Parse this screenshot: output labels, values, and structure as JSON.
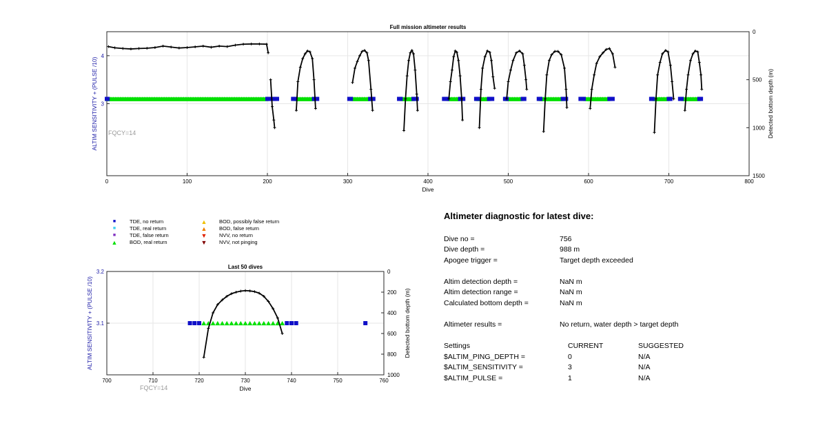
{
  "chart_data": [
    {
      "type": "scatter",
      "title": "Full mission altimeter results",
      "xlabel": "Dive",
      "ylabel": "ALTIM SENSITIVITY + (PULSE /10)",
      "y2label": "Detected bottom depth (m)",
      "annotation": "FQCY=14",
      "xlim": [
        0,
        800
      ],
      "ylim": [
        1.5,
        4.5
      ],
      "y2lim": [
        1500,
        0
      ],
      "xticks": [
        0,
        100,
        200,
        300,
        400,
        500,
        600,
        700,
        800
      ],
      "yticks": [
        3,
        4
      ],
      "y2ticks": [
        0,
        500,
        1000,
        1500
      ],
      "grid": true,
      "series": [
        {
          "name": "BOD, real return",
          "color": "#00e000",
          "marker": "triangle",
          "y": 3.1,
          "ranges": [
            [
              1,
              199
            ],
            [
              236,
              258
            ],
            [
              306,
              328
            ],
            [
              368,
              382
            ],
            [
              426,
              440
            ],
            [
              462,
              476
            ],
            [
              498,
              517
            ],
            [
              540,
              568
            ],
            [
              596,
              626
            ],
            [
              682,
              700
            ],
            [
              718,
              738
            ]
          ]
        },
        {
          "name": "TDE, no return",
          "color": "#1010c8",
          "marker": "square",
          "y": 3.1,
          "x": [
            0,
            1,
            200,
            202,
            204,
            206,
            208,
            210,
            212,
            232,
            234,
            258,
            260,
            262,
            302,
            304,
            328,
            330,
            332,
            364,
            366,
            382,
            384,
            386,
            420,
            422,
            424,
            440,
            442,
            444,
            460,
            462,
            476,
            478,
            480,
            496,
            498,
            518,
            520,
            538,
            540,
            568,
            570,
            572,
            590,
            592,
            594,
            626,
            628,
            630,
            678,
            680,
            700,
            702,
            714,
            716,
            738,
            740
          ]
        },
        {
          "name": "Detected bottom depth",
          "color": "#000000",
          "marker": "plus",
          "axis": "y2",
          "segments": [
            [
              [
                2,
                155
              ],
              [
                10,
                168
              ],
              [
                20,
                175
              ],
              [
                30,
                180
              ],
              [
                40,
                175
              ],
              [
                50,
                172
              ],
              [
                60,
                165
              ],
              [
                70,
                150
              ],
              [
                80,
                160
              ],
              [
                90,
                170
              ],
              [
                100,
                165
              ],
              [
                110,
                158
              ],
              [
                120,
                150
              ],
              [
                130,
                162
              ],
              [
                140,
                150
              ],
              [
                150,
                155
              ],
              [
                160,
                140
              ],
              [
                170,
                130
              ],
              [
                180,
                128
              ],
              [
                190,
                128
              ],
              [
                199,
                130
              ],
              [
                201,
                220
              ]
            ],
            [
              [
                204,
                500
              ],
              [
                206,
                780
              ],
              [
                208,
                920
              ],
              [
                209,
                1000
              ]
            ],
            [
              [
                236,
                820
              ],
              [
                238,
                520
              ],
              [
                241,
                370
              ],
              [
                244,
                280
              ],
              [
                247,
                230
              ],
              [
                250,
                200
              ],
              [
                253,
                210
              ],
              [
                256,
                280
              ],
              [
                258,
                500
              ],
              [
                260,
                800
              ]
            ],
            [
              [
                306,
                530
              ],
              [
                309,
                380
              ],
              [
                312,
                310
              ],
              [
                315,
                250
              ],
              [
                318,
                205
              ],
              [
                321,
                195
              ],
              [
                324,
                220
              ],
              [
                326,
                300
              ],
              [
                329,
                600
              ],
              [
                331,
                820
              ]
            ],
            [
              [
                370,
                1030
              ],
              [
                372,
                700
              ],
              [
                374,
                460
              ],
              [
                376,
                300
              ],
              [
                378,
                220
              ],
              [
                380,
                195
              ],
              [
                382,
                230
              ],
              [
                384,
                400
              ],
              [
                386,
                650
              ],
              [
                387,
                820
              ]
            ],
            [
              [
                426,
                700
              ],
              [
                428,
                520
              ],
              [
                430,
                400
              ],
              [
                432,
                260
              ],
              [
                434,
                200
              ],
              [
                436,
                215
              ],
              [
                438,
                300
              ],
              [
                440,
                460
              ],
              [
                442,
                700
              ],
              [
                443,
                920
              ]
            ],
            [
              [
                464,
                1000
              ],
              [
                466,
                600
              ],
              [
                468,
                380
              ],
              [
                471,
                260
              ],
              [
                474,
                200
              ],
              [
                477,
                215
              ],
              [
                479,
                300
              ],
              [
                481,
                470
              ],
              [
                483,
                590
              ]
            ],
            [
              [
                498,
                700
              ],
              [
                500,
                520
              ],
              [
                503,
                400
              ],
              [
                506,
                300
              ],
              [
                510,
                220
              ],
              [
                514,
                200
              ],
              [
                518,
                230
              ],
              [
                520,
                350
              ],
              [
                522,
                500
              ],
              [
                523,
                600
              ]
            ],
            [
              [
                544,
                1040
              ],
              [
                546,
                700
              ],
              [
                548,
                450
              ],
              [
                551,
                300
              ],
              [
                554,
                240
              ],
              [
                558,
                205
              ],
              [
                562,
                205
              ],
              [
                566,
                240
              ],
              [
                570,
                380
              ],
              [
                572,
                600
              ],
              [
                573,
                790
              ]
            ],
            [
              [
                602,
                800
              ],
              [
                604,
                600
              ],
              [
                607,
                450
              ],
              [
                610,
                330
              ],
              [
                614,
                260
              ],
              [
                618,
                220
              ],
              [
                622,
                185
              ],
              [
                626,
                175
              ],
              [
                630,
                230
              ],
              [
                633,
                370
              ]
            ],
            [
              [
                682,
                1050
              ],
              [
                684,
                700
              ],
              [
                686,
                450
              ],
              [
                689,
                320
              ],
              [
                692,
                230
              ],
              [
                696,
                195
              ],
              [
                699,
                210
              ],
              [
                702,
                350
              ],
              [
                704,
                520
              ],
              [
                706,
                700
              ]
            ],
            [
              [
                720,
                820
              ],
              [
                722,
                600
              ],
              [
                724,
                450
              ],
              [
                727,
                300
              ],
              [
                730,
                230
              ],
              [
                733,
                200
              ],
              [
                736,
                210
              ],
              [
                738,
                320
              ],
              [
                740,
                450
              ],
              [
                741,
                600
              ]
            ]
          ]
        }
      ]
    },
    {
      "type": "scatter",
      "title": "Last 50 dives",
      "xlabel": "Dive",
      "ylabel": "ALTIM SENSITIVITY + (PULSE /10)",
      "y2label": "Detected bottom depth (m)",
      "annotation": "FQCY=14",
      "xlim": [
        700,
        760
      ],
      "ylim": [
        3.0,
        3.2
      ],
      "y2lim": [
        1000,
        0
      ],
      "xticks": [
        700,
        710,
        720,
        730,
        740,
        750,
        760
      ],
      "yticks": [
        3.1,
        3.2
      ],
      "y2ticks": [
        0,
        200,
        400,
        600,
        800,
        1000
      ],
      "grid": true,
      "series": [
        {
          "name": "BOD, real return",
          "color": "#00e000",
          "marker": "triangle",
          "y": 3.1,
          "x": [
            721,
            722,
            723,
            724,
            725,
            726,
            727,
            728,
            729,
            730,
            731,
            732,
            733,
            734,
            735,
            736,
            737,
            738
          ]
        },
        {
          "name": "TDE, no return",
          "color": "#1010c8",
          "marker": "square",
          "y": 3.1,
          "x": [
            718,
            719,
            720,
            739,
            740,
            741,
            756
          ]
        },
        {
          "name": "Detected bottom depth",
          "color": "#000000",
          "marker": "plus",
          "axis": "y2",
          "x": [
            721,
            722,
            723,
            724,
            725,
            726,
            727,
            728,
            729,
            730,
            731,
            732,
            733,
            734,
            735,
            736,
            737,
            738
          ],
          "y": [
            830,
            550,
            400,
            320,
            275,
            240,
            215,
            200,
            190,
            185,
            188,
            195,
            210,
            240,
            290,
            360,
            450,
            600
          ]
        }
      ]
    }
  ],
  "legend": {
    "items": [
      {
        "label": "TDE, no return",
        "color": "#1010c8",
        "shape": "square"
      },
      {
        "label": "TDE, real return",
        "color": "#40d0f0",
        "shape": "square"
      },
      {
        "label": "TDE, false return",
        "color": "#8030c0",
        "shape": "square"
      },
      {
        "label": "BOD, real return",
        "color": "#00e000",
        "shape": "triangle-up"
      },
      {
        "label": "BOD, possibly false return",
        "color": "#f0c000",
        "shape": "triangle-up"
      },
      {
        "label": "BOD, false return",
        "color": "#f08000",
        "shape": "triangle-up"
      },
      {
        "label": "NVV, no return",
        "color": "#e02000",
        "shape": "triangle-down"
      },
      {
        "label": "NVV, not pinging",
        "color": "#800000",
        "shape": "triangle-down"
      }
    ]
  },
  "diagnostic": {
    "title": "Altimeter diagnostic for latest dive:",
    "dive_no_label": "Dive no =",
    "dive_no": "756",
    "dive_depth_label": "Dive depth =",
    "dive_depth": "988 m",
    "apogee_label": "Apogee trigger =",
    "apogee": "Target depth exceeded",
    "detect_depth_label": "Altim detection depth =",
    "detect_depth": "NaN m",
    "detect_range_label": "Altim detection range =",
    "detect_range": "NaN m",
    "calc_bottom_label": "Calculated bottom depth =",
    "calc_bottom": "NaN m",
    "results_label": "Altimeter results =",
    "results": "No return, water depth > target depth",
    "settings_label": "Settings",
    "current_label": "CURRENT",
    "suggested_label": "SUGGESTED",
    "settings": [
      {
        "name": "$ALTIM_PING_DEPTH =",
        "current": "0",
        "suggested": "N/A"
      },
      {
        "name": "$ALTIM_SENSITIVITY =",
        "current": "3",
        "suggested": "N/A"
      },
      {
        "name": "$ALTIM_PULSE =",
        "current": "1",
        "suggested": "N/A"
      }
    ]
  }
}
